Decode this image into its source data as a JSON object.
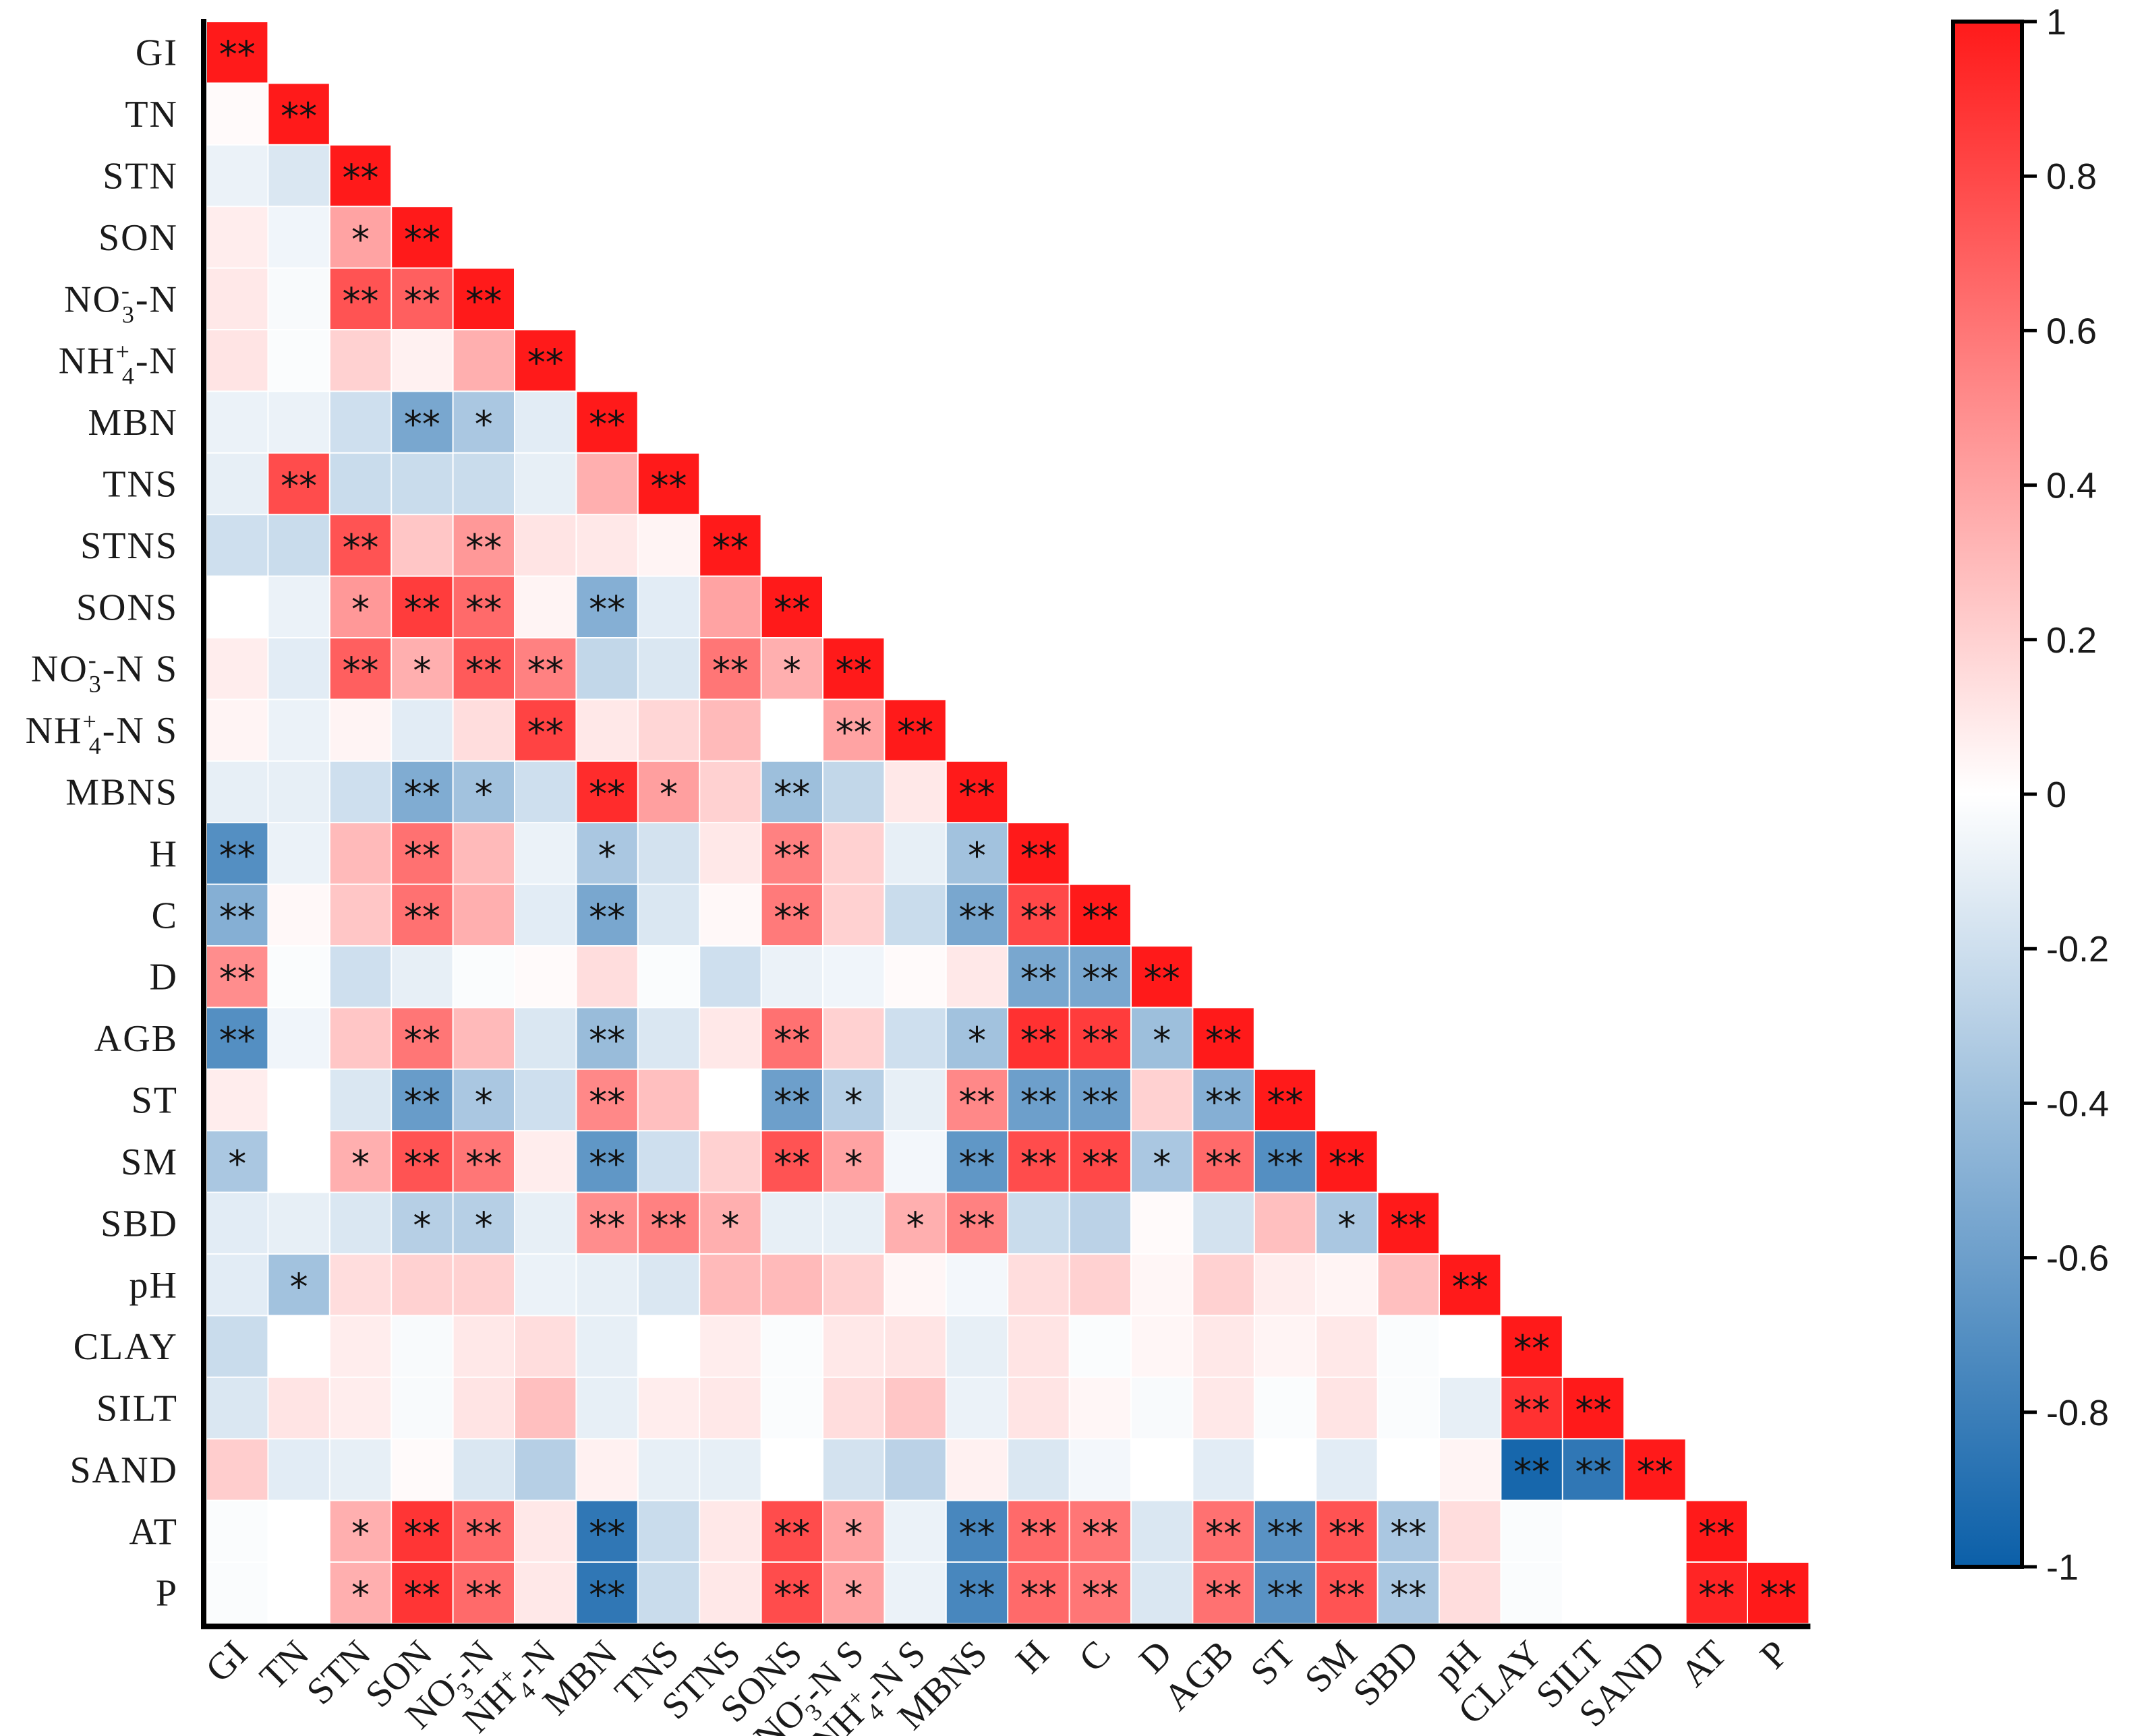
{
  "chart_data": {
    "type": "heatmap",
    "title": "",
    "labels": [
      {
        "base": "GI"
      },
      {
        "base": "TN"
      },
      {
        "base": "STN"
      },
      {
        "base": "SON"
      },
      {
        "base": "NO",
        "sup": "-",
        "sub": "3",
        "suffix": "-N"
      },
      {
        "base": "NH",
        "sup": "+",
        "sub": "4",
        "suffix": "-N"
      },
      {
        "base": "MBN"
      },
      {
        "base": "TNS"
      },
      {
        "base": "STNS"
      },
      {
        "base": "SONS"
      },
      {
        "base": "NO",
        "sup": "-",
        "sub": "3",
        "suffix": "-N S"
      },
      {
        "base": "NH",
        "sup": "+",
        "sub": "4",
        "suffix": "-N S"
      },
      {
        "base": "MBNS"
      },
      {
        "base": "H"
      },
      {
        "base": "C"
      },
      {
        "base": "D"
      },
      {
        "base": "AGB"
      },
      {
        "base": "ST"
      },
      {
        "base": "SM"
      },
      {
        "base": "SBD"
      },
      {
        "base": "pH"
      },
      {
        "base": "CLAY"
      },
      {
        "base": "SILT"
      },
      {
        "base": "SAND"
      },
      {
        "base": "AT"
      },
      {
        "base": "P"
      }
    ],
    "values": [
      [
        1
      ],
      [
        0.02,
        1
      ],
      [
        -0.08,
        -0.15,
        1
      ],
      [
        0.08,
        -0.06,
        0.4,
        1
      ],
      [
        0.1,
        -0.03,
        0.75,
        0.7,
        1
      ],
      [
        0.12,
        -0.02,
        0.2,
        0.06,
        0.35,
        1
      ],
      [
        -0.08,
        -0.08,
        -0.2,
        -0.55,
        -0.35,
        -0.12,
        1
      ],
      [
        -0.1,
        0.78,
        -0.22,
        -0.22,
        -0.22,
        -0.1,
        0.35,
        1
      ],
      [
        -0.2,
        -0.22,
        0.75,
        0.25,
        0.45,
        0.12,
        0.1,
        0.05,
        1
      ],
      [
        0,
        -0.08,
        0.45,
        0.85,
        0.65,
        0.05,
        -0.5,
        -0.12,
        0.4,
        1
      ],
      [
        0.08,
        -0.12,
        0.7,
        0.35,
        0.72,
        0.55,
        -0.25,
        -0.15,
        0.6,
        0.35,
        1
      ],
      [
        0.05,
        -0.08,
        0.05,
        -0.12,
        0.15,
        0.82,
        0.1,
        0.18,
        0.3,
        0,
        0.4,
        1
      ],
      [
        -0.1,
        -0.1,
        -0.2,
        -0.52,
        -0.38,
        -0.2,
        0.92,
        0.42,
        0.2,
        -0.4,
        -0.25,
        0.1,
        1
      ],
      [
        -0.7,
        -0.08,
        0.3,
        0.62,
        0.3,
        -0.08,
        -0.35,
        -0.18,
        0.1,
        0.55,
        0.2,
        -0.1,
        -0.38,
        1
      ],
      [
        -0.5,
        0.03,
        0.25,
        0.62,
        0.35,
        -0.12,
        -0.55,
        -0.15,
        0.03,
        0.58,
        0.2,
        -0.22,
        -0.55,
        0.8,
        1
      ],
      [
        0.5,
        -0.02,
        -0.2,
        -0.1,
        -0.02,
        0.02,
        0.15,
        -0.02,
        -0.2,
        -0.08,
        -0.06,
        0.02,
        0.1,
        -0.55,
        -0.55,
        1
      ],
      [
        -0.7,
        -0.06,
        0.25,
        0.6,
        0.3,
        -0.15,
        -0.42,
        -0.15,
        0.1,
        0.62,
        0.2,
        -0.2,
        -0.38,
        0.9,
        0.85,
        -0.4,
        1
      ],
      [
        0.08,
        0,
        -0.15,
        -0.62,
        -0.35,
        -0.2,
        0.52,
        0.28,
        0,
        -0.6,
        -0.3,
        -0.1,
        0.52,
        -0.6,
        -0.6,
        0.2,
        -0.5,
        1
      ],
      [
        -0.35,
        0,
        0.35,
        0.75,
        0.6,
        0.08,
        -0.65,
        -0.2,
        0.2,
        0.75,
        0.4,
        -0.05,
        -0.65,
        0.78,
        0.8,
        -0.35,
        0.65,
        -0.7,
        1
      ],
      [
        -0.12,
        -0.1,
        -0.15,
        -0.3,
        -0.3,
        -0.1,
        0.5,
        0.55,
        0.35,
        -0.1,
        -0.1,
        0.35,
        0.55,
        -0.22,
        -0.28,
        0.02,
        -0.18,
        0.28,
        -0.35,
        1
      ],
      [
        -0.12,
        -0.38,
        0.15,
        0.2,
        0.2,
        -0.08,
        -0.1,
        -0.15,
        0.3,
        0.3,
        0.2,
        0.04,
        -0.05,
        0.15,
        0.2,
        0.04,
        0.2,
        0.08,
        0.05,
        0.28,
        1
      ],
      [
        -0.22,
        0,
        0.08,
        -0.03,
        0.1,
        0.15,
        -0.1,
        0,
        0.08,
        -0.02,
        0.1,
        0.12,
        -0.1,
        0.12,
        -0.02,
        0.04,
        0.1,
        0.05,
        0.1,
        -0.02,
        0,
        1
      ],
      [
        -0.15,
        0.12,
        0.08,
        -0.03,
        0.12,
        0.28,
        -0.1,
        0.08,
        0.1,
        -0.02,
        0.15,
        0.25,
        -0.08,
        0.12,
        0.04,
        -0.03,
        0.1,
        -0.02,
        0.12,
        -0.02,
        -0.1,
        0.9,
        1
      ],
      [
        0.22,
        -0.12,
        -0.1,
        0.02,
        -0.15,
        -0.3,
        0.06,
        -0.1,
        -0.1,
        0,
        -0.18,
        -0.28,
        0.06,
        -0.15,
        -0.05,
        0,
        -0.12,
        0,
        -0.12,
        0,
        0.05,
        -0.95,
        -0.85,
        1
      ],
      [
        -0.02,
        0,
        0.35,
        0.88,
        0.65,
        0.1,
        -0.85,
        -0.22,
        0.1,
        0.78,
        0.4,
        -0.08,
        -0.75,
        0.65,
        0.6,
        -0.15,
        0.62,
        -0.68,
        0.75,
        -0.35,
        0.15,
        -0.02,
        0,
        0,
        1
      ],
      [
        -0.02,
        0,
        0.35,
        0.88,
        0.65,
        0.1,
        -0.85,
        -0.22,
        0.1,
        0.78,
        0.4,
        -0.08,
        -0.75,
        0.65,
        0.6,
        -0.15,
        0.62,
        -0.68,
        0.75,
        -0.35,
        0.15,
        -0.02,
        0,
        0,
        0.95,
        1
      ]
    ],
    "significance": [
      [
        "**"
      ],
      [
        "",
        "**"
      ],
      [
        "",
        "",
        "**"
      ],
      [
        "",
        "",
        "*",
        "**"
      ],
      [
        "",
        "",
        "**",
        "**",
        "**"
      ],
      [
        "",
        "",
        "",
        "",
        "",
        "**"
      ],
      [
        "",
        "",
        "",
        "**",
        "*",
        "",
        "**"
      ],
      [
        "",
        "**",
        "",
        "",
        "",
        "",
        "",
        "**"
      ],
      [
        "",
        "",
        "**",
        "",
        "**",
        "",
        "",
        "",
        "**"
      ],
      [
        "",
        "",
        "*",
        "**",
        "**",
        "",
        "**",
        "",
        "",
        "**"
      ],
      [
        "",
        "",
        "**",
        "*",
        "**",
        "**",
        "",
        "",
        "**",
        "*",
        "**"
      ],
      [
        "",
        "",
        "",
        "",
        "",
        "**",
        "",
        "",
        "",
        "",
        "**",
        "**"
      ],
      [
        "",
        "",
        "",
        "**",
        "*",
        "",
        "**",
        "*",
        "",
        "**",
        "",
        "",
        "**"
      ],
      [
        "**",
        "",
        "",
        "**",
        "",
        "",
        "*",
        "",
        "",
        "**",
        "",
        "",
        "*",
        "**"
      ],
      [
        "**",
        "",
        "",
        "**",
        "",
        "",
        "**",
        "",
        "",
        "**",
        "",
        "",
        "**",
        "**",
        "**"
      ],
      [
        "**",
        "",
        "",
        "",
        "",
        "",
        "",
        "",
        "",
        "",
        "",
        "",
        "",
        "**",
        "**",
        "**"
      ],
      [
        "**",
        "",
        "",
        "**",
        "",
        "",
        "**",
        "",
        "",
        "**",
        "",
        "",
        "*",
        "**",
        "**",
        "*",
        "**"
      ],
      [
        "",
        "",
        "",
        "**",
        "*",
        "",
        "**",
        "",
        "",
        "**",
        "*",
        "",
        "**",
        "**",
        "**",
        "",
        "**",
        "**"
      ],
      [
        "*",
        "",
        "*",
        "**",
        "**",
        "",
        "**",
        "",
        "",
        "**",
        "*",
        "",
        "**",
        "**",
        "**",
        "*",
        "**",
        "**",
        "**"
      ],
      [
        "",
        "",
        "",
        "*",
        "*",
        "",
        "**",
        "**",
        "*",
        "",
        "",
        "*",
        "**",
        "",
        "",
        "",
        "",
        "",
        "*",
        "**"
      ],
      [
        "",
        "*",
        "",
        "",
        "",
        "",
        "",
        "",
        "",
        "",
        "",
        "",
        "",
        "",
        "",
        "",
        "",
        "",
        "",
        "",
        "**"
      ],
      [
        "",
        "",
        "",
        "",
        "",
        "",
        "",
        "",
        "",
        "",
        "",
        "",
        "",
        "",
        "",
        "",
        "",
        "",
        "",
        "",
        "",
        "**"
      ],
      [
        "",
        "",
        "",
        "",
        "",
        "",
        "",
        "",
        "",
        "",
        "",
        "",
        "",
        "",
        "",
        "",
        "",
        "",
        "",
        "",
        "",
        "**",
        "**"
      ],
      [
        "",
        "",
        "",
        "",
        "",
        "",
        "",
        "",
        "",
        "",
        "",
        "",
        "",
        "",
        "",
        "",
        "",
        "",
        "",
        "",
        "",
        "**",
        "**",
        "**"
      ],
      [
        "",
        "",
        "*",
        "**",
        "**",
        "",
        "**",
        "",
        "",
        "**",
        "*",
        "",
        "**",
        "**",
        "**",
        "",
        "**",
        "**",
        "**",
        "**",
        "",
        "",
        "",
        "",
        "**"
      ],
      [
        "",
        "",
        "*",
        "**",
        "**",
        "",
        "**",
        "",
        "",
        "**",
        "*",
        "",
        "**",
        "**",
        "**",
        "",
        "**",
        "**",
        "**",
        "**",
        "",
        "",
        "",
        "",
        "**",
        "**"
      ]
    ],
    "colorbar": {
      "range": [
        -1,
        1
      ],
      "ticks": [
        1,
        0.8,
        0.6,
        0.4,
        0.2,
        0,
        -0.2,
        -0.4,
        -0.6,
        -0.8,
        -1
      ],
      "tick_labels": [
        "1",
        "0.8",
        "0.6",
        "0.4",
        "0.2",
        "0",
        "-0.2",
        "-0.4",
        "-0.6",
        "-0.8",
        "-1"
      ],
      "colors": {
        "negative": "#0b5fa8",
        "zero": "#ffffff",
        "positive": "#ff1a1a"
      }
    }
  }
}
